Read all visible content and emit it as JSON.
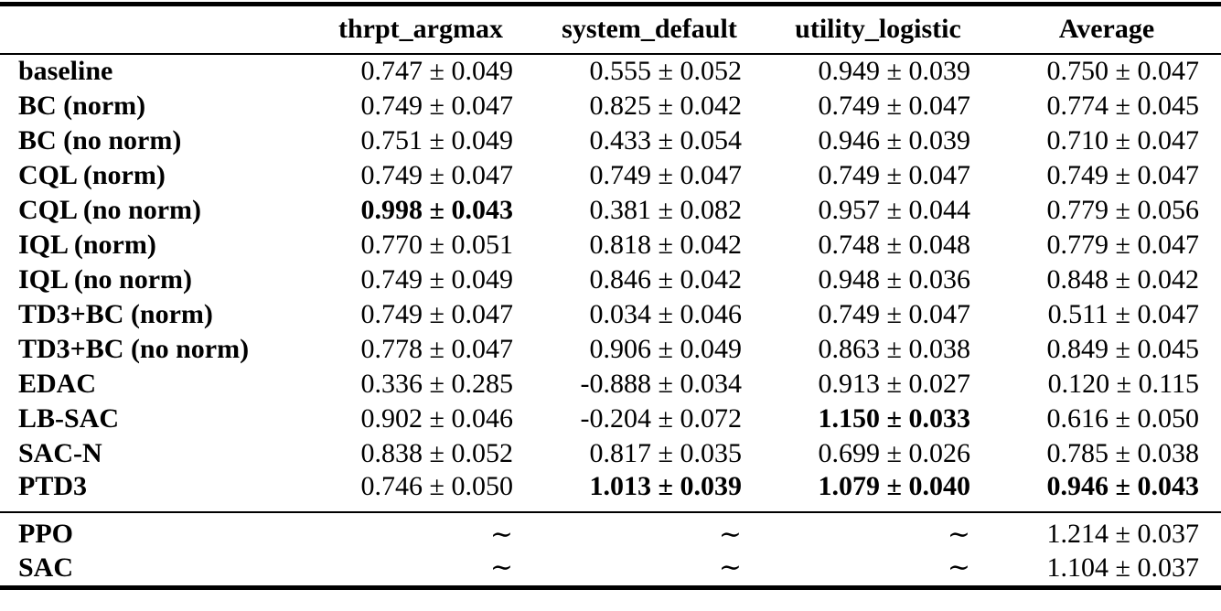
{
  "colors": {
    "text": "#000000",
    "background": "#ffffff",
    "rule": "#000000"
  },
  "table": {
    "header": [
      "",
      "thrpt_argmax",
      "system_default",
      "utility_logistic",
      "Average"
    ],
    "tilde_symbol": "∼",
    "main_rows": [
      {
        "label": "baseline",
        "cells": [
          {
            "text": "0.747 ± 0.049",
            "bold": false
          },
          {
            "text": "0.555 ± 0.052",
            "bold": false
          },
          {
            "text": "0.949 ± 0.039",
            "bold": false
          },
          {
            "text": "0.750 ± 0.047",
            "bold": false
          }
        ]
      },
      {
        "label": "BC (norm)",
        "cells": [
          {
            "text": "0.749 ± 0.047",
            "bold": false
          },
          {
            "text": "0.825 ± 0.042",
            "bold": false
          },
          {
            "text": "0.749 ± 0.047",
            "bold": false
          },
          {
            "text": "0.774 ± 0.045",
            "bold": false
          }
        ]
      },
      {
        "label": "BC (no norm)",
        "cells": [
          {
            "text": "0.751 ± 0.049",
            "bold": false
          },
          {
            "text": "0.433 ± 0.054",
            "bold": false
          },
          {
            "text": "0.946 ± 0.039",
            "bold": false
          },
          {
            "text": "0.710 ± 0.047",
            "bold": false
          }
        ]
      },
      {
        "label": "CQL (norm)",
        "cells": [
          {
            "text": "0.749 ± 0.047",
            "bold": false
          },
          {
            "text": "0.749 ± 0.047",
            "bold": false
          },
          {
            "text": "0.749 ± 0.047",
            "bold": false
          },
          {
            "text": "0.749 ± 0.047",
            "bold": false
          }
        ]
      },
      {
        "label": "CQL (no norm)",
        "cells": [
          {
            "text": "0.998 ± 0.043",
            "bold": true
          },
          {
            "text": "0.381 ± 0.082",
            "bold": false
          },
          {
            "text": "0.957 ± 0.044",
            "bold": false
          },
          {
            "text": "0.779 ± 0.056",
            "bold": false
          }
        ]
      },
      {
        "label": "IQL (norm)",
        "cells": [
          {
            "text": "0.770 ± 0.051",
            "bold": false
          },
          {
            "text": "0.818 ± 0.042",
            "bold": false
          },
          {
            "text": "0.748 ± 0.048",
            "bold": false
          },
          {
            "text": "0.779 ± 0.047",
            "bold": false
          }
        ]
      },
      {
        "label": "IQL (no norm)",
        "cells": [
          {
            "text": "0.749 ± 0.049",
            "bold": false
          },
          {
            "text": "0.846 ± 0.042",
            "bold": false
          },
          {
            "text": "0.948 ± 0.036",
            "bold": false
          },
          {
            "text": "0.848 ± 0.042",
            "bold": false
          }
        ]
      },
      {
        "label": "TD3+BC (norm)",
        "cells": [
          {
            "text": "0.749 ± 0.047",
            "bold": false
          },
          {
            "text": "0.034 ± 0.046",
            "bold": false
          },
          {
            "text": "0.749 ± 0.047",
            "bold": false
          },
          {
            "text": "0.511 ± 0.047",
            "bold": false
          }
        ]
      },
      {
        "label": "TD3+BC (no norm)",
        "cells": [
          {
            "text": "0.778 ± 0.047",
            "bold": false
          },
          {
            "text": "0.906 ± 0.049",
            "bold": false
          },
          {
            "text": "0.863 ± 0.038",
            "bold": false
          },
          {
            "text": "0.849 ± 0.045",
            "bold": false
          }
        ]
      },
      {
        "label": "EDAC",
        "cells": [
          {
            "text": "0.336 ± 0.285",
            "bold": false
          },
          {
            "text": "-0.888 ± 0.034",
            "bold": false
          },
          {
            "text": "0.913 ± 0.027",
            "bold": false
          },
          {
            "text": "0.120 ± 0.115",
            "bold": false
          }
        ]
      },
      {
        "label": "LB-SAC",
        "cells": [
          {
            "text": "0.902 ± 0.046",
            "bold": false
          },
          {
            "text": "-0.204 ± 0.072",
            "bold": false
          },
          {
            "text": "1.150 ± 0.033",
            "bold": true
          },
          {
            "text": "0.616 ± 0.050",
            "bold": false
          }
        ]
      },
      {
        "label": "SAC-N",
        "cells": [
          {
            "text": "0.838 ± 0.052",
            "bold": false
          },
          {
            "text": "0.817 ± 0.035",
            "bold": false
          },
          {
            "text": "0.699 ± 0.026",
            "bold": false
          },
          {
            "text": "0.785 ± 0.038",
            "bold": false
          }
        ]
      },
      {
        "label": "PTD3",
        "cells": [
          {
            "text": "0.746 ± 0.050",
            "bold": false
          },
          {
            "text": "1.013 ± 0.039",
            "bold": true
          },
          {
            "text": "1.079 ± 0.040",
            "bold": true
          },
          {
            "text": "0.946 ± 0.043",
            "bold": true
          }
        ]
      }
    ],
    "baseline_rows": [
      {
        "label": "PPO",
        "cells": [
          {
            "text": "∼",
            "bold": false
          },
          {
            "text": "∼",
            "bold": false
          },
          {
            "text": "∼",
            "bold": false
          },
          {
            "text": "1.214 ± 0.037",
            "bold": false
          }
        ]
      },
      {
        "label": "SAC",
        "cells": [
          {
            "text": "∼",
            "bold": false
          },
          {
            "text": "∼",
            "bold": false
          },
          {
            "text": "∼",
            "bold": false
          },
          {
            "text": "1.104 ± 0.037",
            "bold": false
          }
        ]
      }
    ]
  }
}
